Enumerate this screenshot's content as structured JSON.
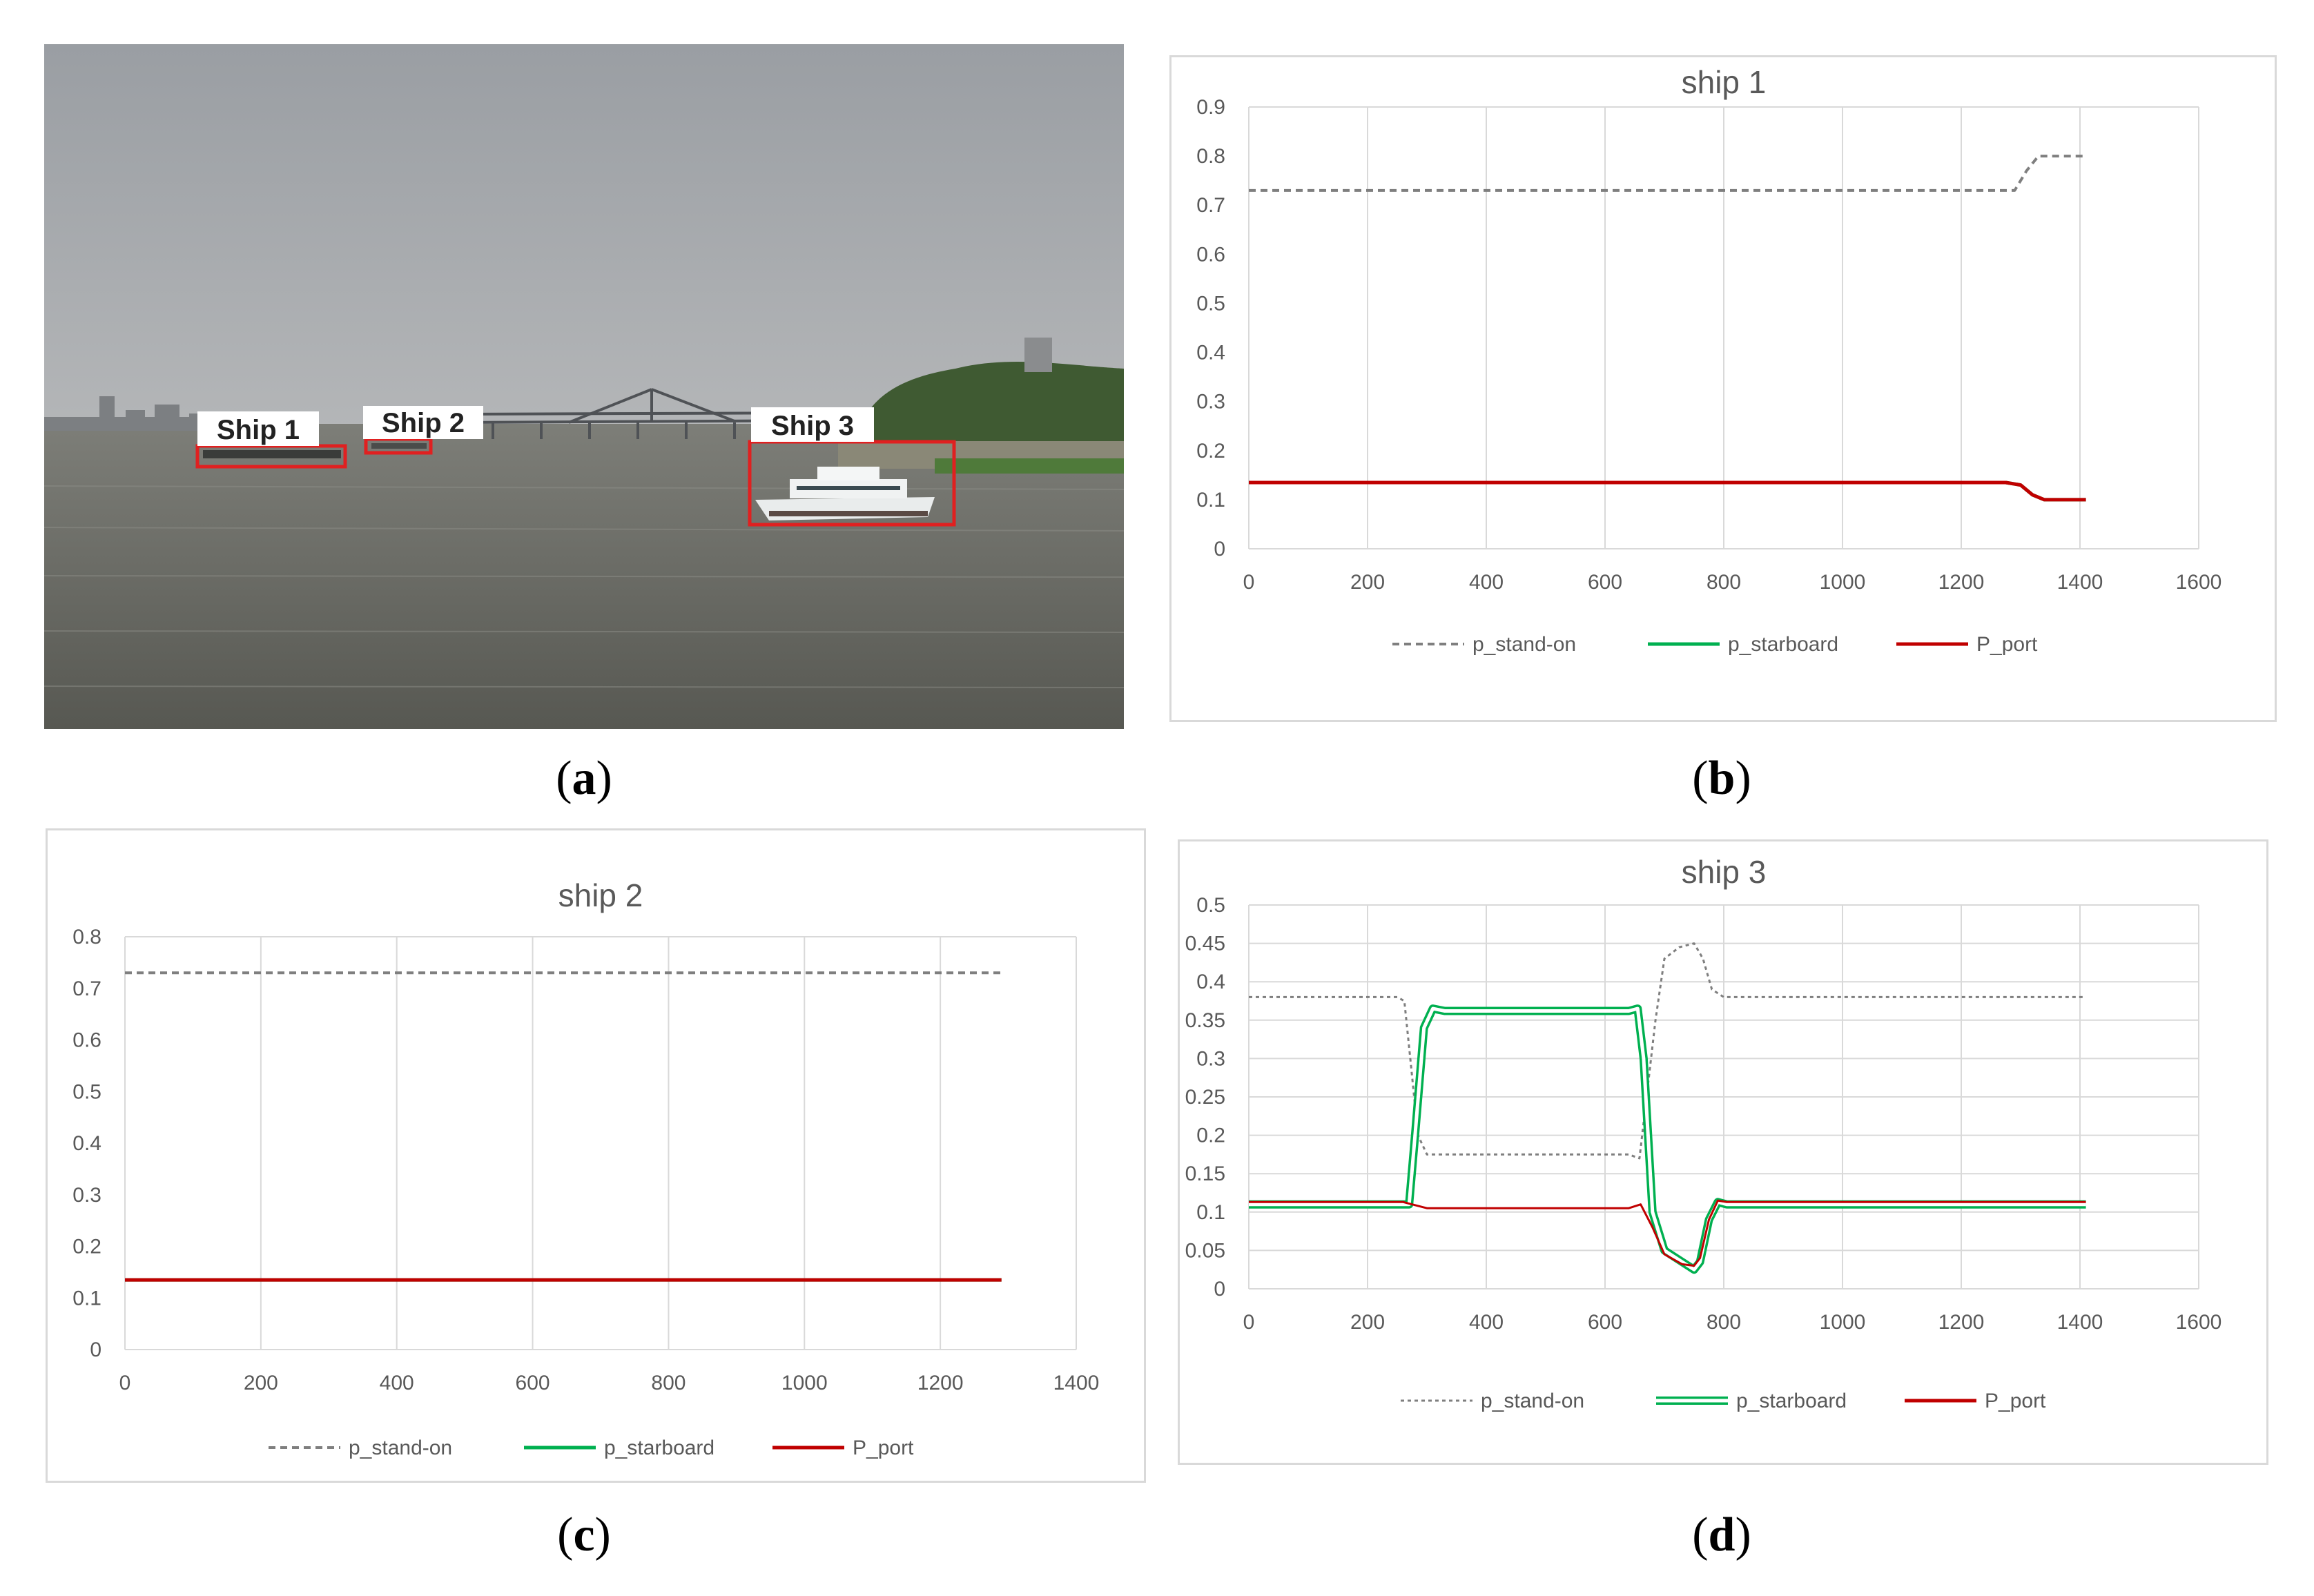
{
  "photo": {
    "labels": [
      "Ship 1",
      "Ship 2",
      "Ship 3"
    ],
    "colors": {
      "sky": "#9ea2a6",
      "water": "#6e6f6a",
      "box": "#e02020"
    }
  },
  "captions": [
    "a",
    "b",
    "c",
    "d"
  ],
  "colors": {
    "stand_on": "#7f7f7f",
    "starboard": "#00b050",
    "port": "#c00000",
    "grid": "#d9d9d9"
  },
  "chart_data": [
    {
      "type": "line",
      "title": "ship 1",
      "xlim": [
        0,
        1600
      ],
      "ylim": [
        0,
        0.9
      ],
      "xticks": [
        "0",
        "200",
        "400",
        "600",
        "800",
        "1000",
        "1200",
        "1400",
        "1600"
      ],
      "yticks": [
        "0",
        "0.1",
        "0.2",
        "0.3",
        "0.4",
        "0.5",
        "0.6",
        "0.7",
        "0.8",
        "0.9"
      ],
      "grid": "vertical",
      "legend": "bottom",
      "series": [
        {
          "name": "p_stand-on",
          "style": "dashed",
          "x": [
            0,
            1270,
            1290,
            1310,
            1330,
            1410
          ],
          "y": [
            0.73,
            0.73,
            0.73,
            0.77,
            0.8,
            0.8
          ]
        },
        {
          "name": "p_starboard",
          "style": "solid",
          "x": [
            0,
            1275,
            1300,
            1320,
            1340,
            1410
          ],
          "y": [
            0.135,
            0.135,
            0.13,
            0.11,
            0.1,
            0.1
          ]
        },
        {
          "name": "P_port",
          "style": "solid",
          "x": [
            0,
            1275,
            1300,
            1320,
            1340,
            1410
          ],
          "y": [
            0.135,
            0.135,
            0.13,
            0.11,
            0.1,
            0.1
          ]
        }
      ]
    },
    {
      "type": "line",
      "title": "ship 2",
      "xlim": [
        0,
        1400
      ],
      "ylim": [
        0,
        0.8
      ],
      "xticks": [
        "0",
        "200",
        "400",
        "600",
        "800",
        "1000",
        "1200",
        "1400"
      ],
      "yticks": [
        "0",
        "0.1",
        "0.2",
        "0.3",
        "0.4",
        "0.5",
        "0.6",
        "0.7",
        "0.8"
      ],
      "grid": "vertical",
      "legend": "bottom",
      "series": [
        {
          "name": "p_stand-on",
          "style": "dashed",
          "x": [
            0,
            1290
          ],
          "y": [
            0.73,
            0.73
          ]
        },
        {
          "name": "p_starboard",
          "style": "solid",
          "x": [
            0,
            1290
          ],
          "y": [
            0.135,
            0.135
          ]
        },
        {
          "name": "P_port",
          "style": "solid",
          "x": [
            0,
            1290
          ],
          "y": [
            0.135,
            0.135
          ]
        }
      ]
    },
    {
      "type": "line",
      "title": "ship 3",
      "xlim": [
        0,
        1600
      ],
      "ylim": [
        0,
        0.5
      ],
      "xticks": [
        "0",
        "200",
        "400",
        "600",
        "800",
        "1000",
        "1200",
        "1400",
        "1600"
      ],
      "yticks": [
        "0",
        "0.05",
        "0.1",
        "0.15",
        "0.2",
        "0.25",
        "0.3",
        "0.35",
        "0.4",
        "0.45",
        "0.5"
      ],
      "grid": "both",
      "legend": "bottom",
      "series": [
        {
          "name": "p_stand-on",
          "style": "dotted",
          "x": [
            0,
            250,
            262,
            272,
            285,
            300,
            320,
            640,
            658,
            670,
            685,
            700,
            725,
            750,
            765,
            780,
            800,
            1410
          ],
          "y": [
            0.38,
            0.38,
            0.375,
            0.3,
            0.2,
            0.175,
            0.175,
            0.175,
            0.17,
            0.25,
            0.35,
            0.43,
            0.445,
            0.45,
            0.43,
            0.39,
            0.38,
            0.38
          ]
        },
        {
          "name": "p_starboard",
          "style": "double",
          "x": [
            0,
            255,
            270,
            280,
            295,
            310,
            330,
            640,
            655,
            665,
            680,
            700,
            730,
            750,
            760,
            775,
            790,
            805,
            1410
          ],
          "y": [
            0.11,
            0.11,
            0.11,
            0.2,
            0.34,
            0.365,
            0.362,
            0.362,
            0.365,
            0.3,
            0.1,
            0.05,
            0.035,
            0.025,
            0.035,
            0.09,
            0.113,
            0.11,
            0.11
          ]
        },
        {
          "name": "P_port",
          "style": "solid",
          "x": [
            0,
            260,
            275,
            300,
            640,
            660,
            680,
            700,
            730,
            750,
            760,
            775,
            790,
            805,
            1410
          ],
          "y": [
            0.113,
            0.113,
            0.11,
            0.105,
            0.105,
            0.11,
            0.08,
            0.045,
            0.032,
            0.03,
            0.04,
            0.09,
            0.115,
            0.113,
            0.113
          ]
        }
      ]
    }
  ]
}
